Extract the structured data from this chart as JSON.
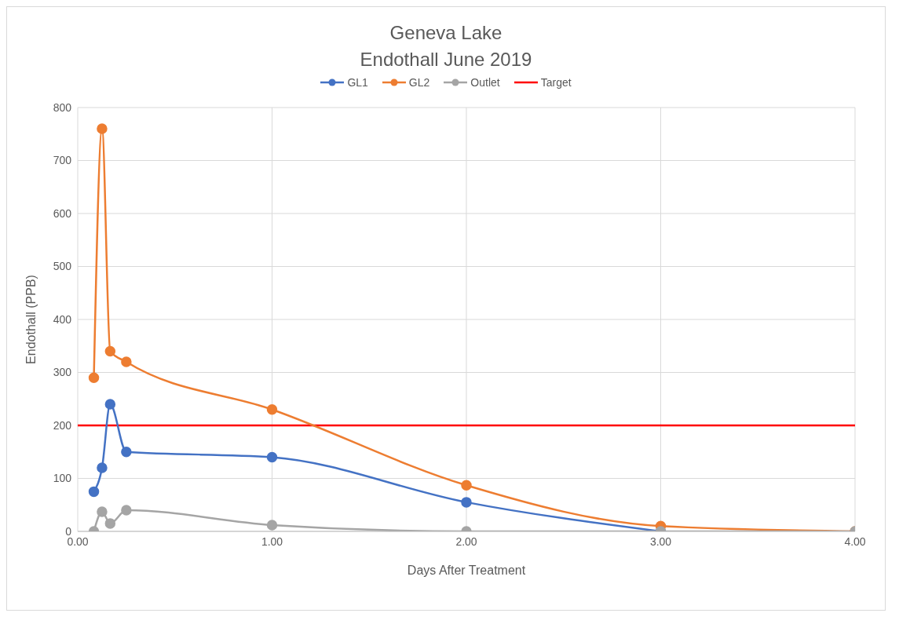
{
  "chart_data": {
    "type": "line",
    "title": "Geneva Lake\nEndothall June 2019",
    "xlabel": "Days After Treatment",
    "ylabel": "Endothall (PPB)",
    "series": [
      {
        "name": "GL1",
        "color": "#4472c4",
        "x": [
          0.083,
          0.125,
          0.167,
          0.25,
          1,
          2,
          3
        ],
        "values": [
          75,
          120,
          240,
          150,
          140,
          55,
          0
        ]
      },
      {
        "name": "GL2",
        "color": "#ed7d31",
        "x": [
          0.083,
          0.125,
          0.167,
          0.25,
          1,
          2,
          3,
          4
        ],
        "values": [
          290,
          760,
          340,
          320,
          230,
          87,
          10,
          0
        ]
      },
      {
        "name": "Outlet",
        "color": "#a5a5a5",
        "x": [
          0.083,
          0.125,
          0.167,
          0.25,
          1,
          2,
          3,
          4
        ],
        "values": [
          0,
          37,
          15,
          40,
          12,
          0,
          0,
          0
        ]
      }
    ],
    "ref_lines": [
      {
        "axis": "y",
        "value": 200,
        "label": "Target",
        "color": "#ff0000"
      }
    ],
    "xlim": [
      0,
      4
    ],
    "xticks": [
      {
        "value": 0,
        "label": "0.00"
      },
      {
        "value": 1,
        "label": "1.00"
      },
      {
        "value": 2,
        "label": "2.00"
      },
      {
        "value": 3,
        "label": "3.00"
      },
      {
        "value": 4,
        "label": "4.00"
      }
    ],
    "ylim": [
      0,
      800
    ],
    "yticks": [
      0,
      100,
      200,
      300,
      400,
      500,
      600,
      700,
      800
    ],
    "grid": true,
    "legend": "top",
    "marker": "circle",
    "line_style": "solid"
  }
}
